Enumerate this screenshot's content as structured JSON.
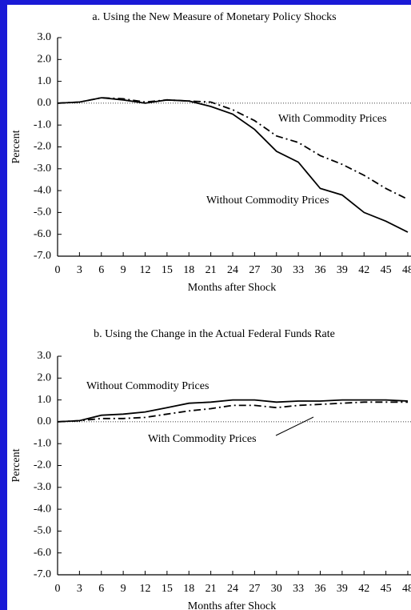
{
  "chart_data": [
    {
      "type": "line",
      "title": "a.  Using the New Measure of Monetary Policy Shocks",
      "x_label": "Months after Shock",
      "y_label": "Percent",
      "x": [
        0,
        3,
        6,
        9,
        12,
        15,
        18,
        21,
        24,
        27,
        30,
        33,
        36,
        39,
        42,
        45,
        48
      ],
      "xlim": [
        0,
        48
      ],
      "xticks": [
        0,
        3,
        6,
        9,
        12,
        15,
        18,
        21,
        24,
        27,
        30,
        33,
        36,
        39,
        42,
        45,
        48
      ],
      "ylim": [
        -7,
        3
      ],
      "yticks": [
        {
          "value": 3,
          "label": "3.0"
        },
        {
          "value": 2,
          "label": "2.0"
        },
        {
          "value": 1,
          "label": "1.0"
        },
        {
          "value": 0,
          "label": "0.0"
        },
        {
          "value": -1,
          "label": "-1.0"
        },
        {
          "value": -2,
          "label": "-2.0"
        },
        {
          "value": -3,
          "label": "-3.0"
        },
        {
          "value": -4,
          "label": "-4.0"
        },
        {
          "value": -5,
          "label": "-5.0"
        },
        {
          "value": -6,
          "label": "-6.0"
        },
        {
          "value": -7,
          "label": "-7.0"
        }
      ],
      "series": [
        {
          "name": "Without Commodity Prices",
          "color": "#000000",
          "style": "solid",
          "values": [
            0,
            0.05,
            0.25,
            0.15,
            0.0,
            0.15,
            0.1,
            -0.15,
            -0.5,
            -1.2,
            -2.2,
            -2.7,
            -3.9,
            -4.2,
            -5.0,
            -5.4,
            -5.9
          ]
        },
        {
          "name": "With Commodity Prices",
          "color": "#000000",
          "style": "dash-dot",
          "values": [
            0,
            0.05,
            0.25,
            0.2,
            0.05,
            0.15,
            0.1,
            0.05,
            -0.3,
            -0.8,
            -1.5,
            -1.8,
            -2.4,
            -2.8,
            -3.3,
            -3.9,
            -4.4
          ]
        }
      ]
    },
    {
      "type": "line",
      "title": "b.  Using the Change in the Actual Federal Funds Rate",
      "x_label": "Months after Shock",
      "y_label": "Percent",
      "x": [
        0,
        3,
        6,
        9,
        12,
        15,
        18,
        21,
        24,
        27,
        30,
        33,
        36,
        39,
        42,
        45,
        48
      ],
      "xlim": [
        0,
        48
      ],
      "xticks": [
        0,
        3,
        6,
        9,
        12,
        15,
        18,
        21,
        24,
        27,
        30,
        33,
        36,
        39,
        42,
        45,
        48
      ],
      "ylim": [
        -7,
        3
      ],
      "yticks": [
        {
          "value": 3,
          "label": "3.0"
        },
        {
          "value": 2,
          "label": "2.0"
        },
        {
          "value": 1,
          "label": "1.0"
        },
        {
          "value": 0,
          "label": "0.0"
        },
        {
          "value": -1,
          "label": "-1.0"
        },
        {
          "value": -2,
          "label": "-2.0"
        },
        {
          "value": -3,
          "label": "-3.0"
        },
        {
          "value": -4,
          "label": "-4.0"
        },
        {
          "value": -5,
          "label": "-5.0"
        },
        {
          "value": -6,
          "label": "-6.0"
        },
        {
          "value": -7,
          "label": "-7.0"
        }
      ],
      "series": [
        {
          "name": "Without Commodity Prices",
          "color": "#000000",
          "style": "solid",
          "values": [
            0,
            0.05,
            0.3,
            0.35,
            0.45,
            0.65,
            0.85,
            0.9,
            1.0,
            1.0,
            0.9,
            0.95,
            0.95,
            1.0,
            1.0,
            1.0,
            0.95
          ]
        },
        {
          "name": "With Commodity Prices",
          "color": "#000000",
          "style": "dash-dot",
          "values": [
            0,
            0.05,
            0.15,
            0.15,
            0.2,
            0.35,
            0.5,
            0.6,
            0.75,
            0.75,
            0.65,
            0.75,
            0.8,
            0.85,
            0.9,
            0.9,
            0.9
          ]
        }
      ]
    }
  ]
}
